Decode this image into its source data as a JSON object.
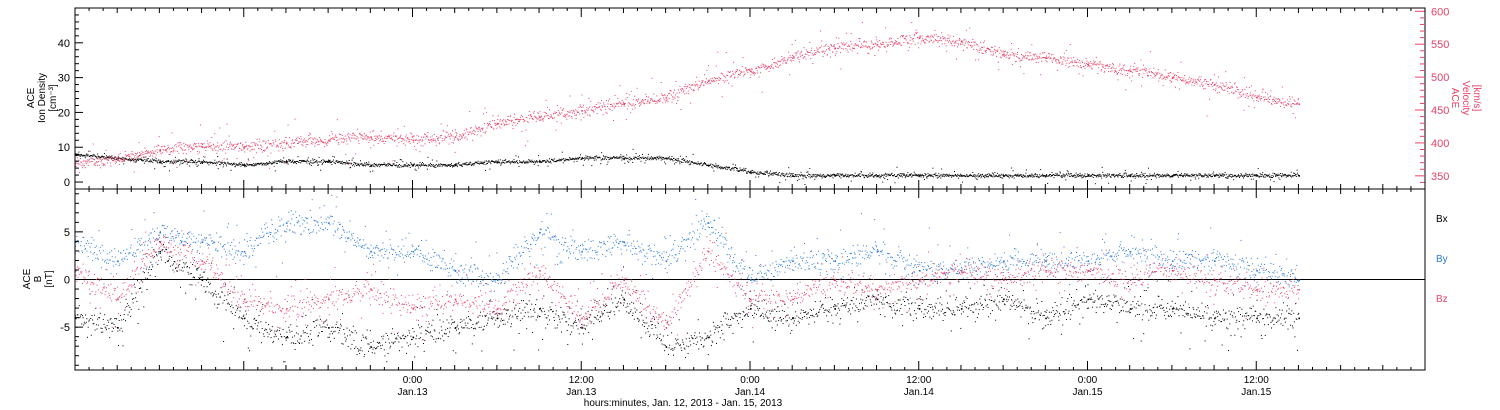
{
  "chart_data": [
    {
      "type": "scatter",
      "panel": "top",
      "ylabel": [
        "ACE",
        "Ion Density",
        "[cm⁻³]"
      ],
      "ylabel_right": [
        "ACE",
        "Velocity",
        "[km/s]"
      ],
      "ylim": [
        -2,
        50
      ],
      "yticks": [
        0,
        10,
        20,
        30,
        40
      ],
      "ylim_right": [
        330,
        605
      ],
      "yticks_right": [
        350,
        400,
        450,
        500,
        550,
        600
      ],
      "grid": false,
      "series": [
        {
          "axis": "left",
          "color": "#000000",
          "t_hours": [
            0,
            3,
            6,
            9,
            12,
            15,
            18,
            21,
            24,
            27,
            30,
            33,
            36,
            39,
            42,
            45,
            48,
            51,
            54,
            57,
            60,
            63,
            66,
            69,
            72,
            75,
            78,
            81,
            84,
            87
          ],
          "values": [
            8,
            7,
            6,
            6,
            5,
            6,
            6,
            5,
            5,
            5,
            6,
            6,
            7,
            7,
            7,
            5,
            3,
            2,
            2,
            2,
            2,
            2,
            2,
            2,
            2,
            2,
            2,
            2,
            2,
            2
          ]
        },
        {
          "axis": "right",
          "color": "#e8436a",
          "t_hours": [
            0,
            3,
            6,
            9,
            12,
            15,
            18,
            21,
            24,
            27,
            30,
            33,
            36,
            39,
            42,
            45,
            48,
            51,
            54,
            57,
            60,
            63,
            66,
            69,
            72,
            75,
            78,
            81,
            84,
            87
          ],
          "values": [
            370,
            375,
            390,
            395,
            395,
            400,
            405,
            410,
            405,
            410,
            430,
            440,
            450,
            460,
            470,
            495,
            510,
            530,
            545,
            550,
            560,
            555,
            535,
            530,
            520,
            510,
            500,
            490,
            470,
            460
          ]
        }
      ]
    },
    {
      "type": "scatter",
      "panel": "bottom",
      "ylabel": [
        "ACE",
        "B",
        "[nT]"
      ],
      "ylim": [
        -9.5,
        9.5
      ],
      "yticks": [
        -5,
        0,
        5
      ],
      "zero_line": true,
      "grid": false,
      "legend": [
        "Bx",
        "By",
        "Bz"
      ],
      "legend_position": "right",
      "series": [
        {
          "name": "Bx",
          "color": "#000000",
          "t_hours": [
            0,
            3,
            6,
            9,
            12,
            15,
            18,
            21,
            24,
            27,
            30,
            33,
            36,
            39,
            42,
            45,
            48,
            51,
            54,
            57,
            60,
            63,
            66,
            69,
            72,
            75,
            78,
            81,
            84,
            87
          ],
          "values": [
            -4,
            -5,
            3,
            0,
            -4,
            -6,
            -5,
            -7,
            -6,
            -5,
            -4,
            -3,
            -5,
            -2,
            -7,
            -6,
            -3,
            -4,
            -3,
            -2,
            -3,
            -3,
            -2,
            -4,
            -2,
            -3,
            -3,
            -4,
            -4,
            -4
          ]
        },
        {
          "name": "By",
          "color": "#2b7bd8",
          "t_hours": [
            0,
            3,
            6,
            9,
            12,
            15,
            18,
            21,
            24,
            27,
            30,
            33,
            36,
            39,
            42,
            45,
            48,
            51,
            54,
            57,
            60,
            63,
            66,
            69,
            72,
            75,
            78,
            81,
            84,
            87
          ],
          "values": [
            4,
            2,
            5,
            4,
            3,
            6,
            6,
            3,
            3,
            1,
            0,
            5,
            3,
            4,
            2,
            6,
            0,
            2,
            2,
            3,
            1,
            1,
            2,
            2,
            2,
            3,
            2,
            2,
            1,
            0
          ]
        },
        {
          "name": "Bz",
          "color": "#e8436a",
          "t_hours": [
            0,
            3,
            6,
            9,
            12,
            15,
            18,
            21,
            24,
            27,
            30,
            33,
            36,
            39,
            42,
            45,
            48,
            51,
            54,
            57,
            60,
            63,
            66,
            69,
            72,
            75,
            78,
            81,
            84,
            87
          ],
          "values": [
            1,
            -2,
            4,
            2,
            -2,
            -3,
            -2,
            -1,
            -3,
            -2,
            -3,
            1,
            -4,
            0,
            -5,
            3,
            -2,
            -2,
            0,
            -1,
            0,
            1,
            0,
            1,
            1,
            0,
            1,
            0,
            -1,
            -1
          ]
        }
      ]
    }
  ],
  "time_axis": {
    "start": "2013-01-12 00:00",
    "end": "2013-01-15 24:00",
    "tick_labels": [
      {
        "t_hours": 24,
        "time": "0:00",
        "date": "Jan.13"
      },
      {
        "t_hours": 36,
        "time": "12:00",
        "date": "Jan.13"
      },
      {
        "t_hours": 48,
        "time": "0:00",
        "date": "Jan.14"
      },
      {
        "t_hours": 60,
        "time": "12:00",
        "date": "Jan.14"
      },
      {
        "t_hours": 72,
        "time": "0:00",
        "date": "Jan.15"
      },
      {
        "t_hours": 84,
        "time": "12:00",
        "date": "Jan.15"
      }
    ],
    "title": "hours:minutes, Jan. 12, 2013 - Jan. 15, 2013"
  }
}
